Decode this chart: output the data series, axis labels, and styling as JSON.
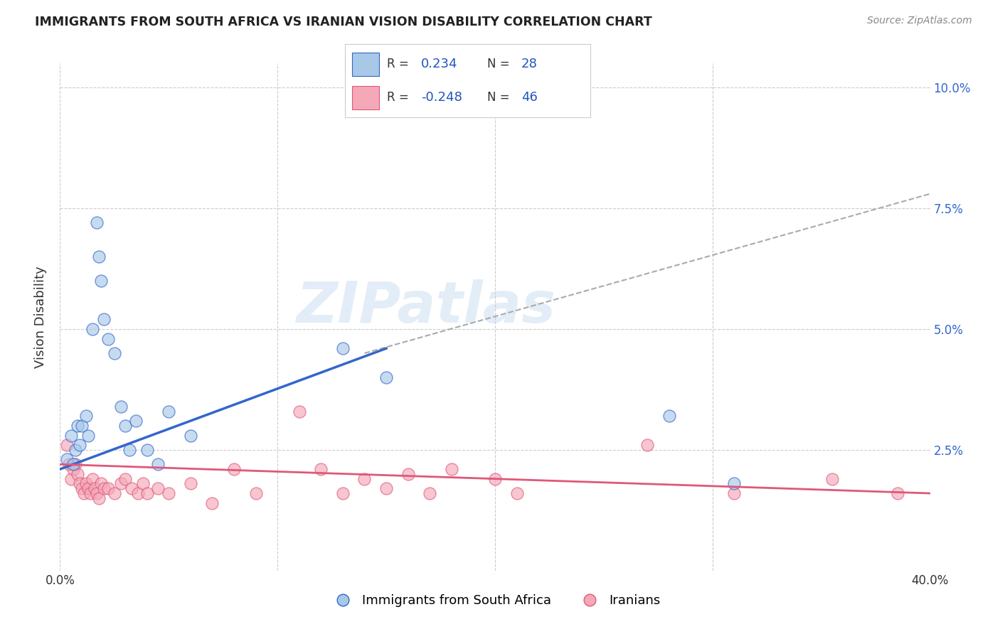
{
  "title": "IMMIGRANTS FROM SOUTH AFRICA VS IRANIAN VISION DISABILITY CORRELATION CHART",
  "source": "Source: ZipAtlas.com",
  "ylabel": "Vision Disability",
  "xmin": 0.0,
  "xmax": 0.4,
  "ymin": 0.0,
  "ymax": 0.105,
  "yticks": [
    0.025,
    0.05,
    0.075,
    0.1
  ],
  "ytick_labels": [
    "2.5%",
    "5.0%",
    "7.5%",
    "10.0%"
  ],
  "xticks": [
    0.0,
    0.1,
    0.2,
    0.3,
    0.4
  ],
  "xtick_labels": [
    "0.0%",
    "",
    "",
    "",
    "40.0%"
  ],
  "blue_color": "#a8c8e8",
  "pink_color": "#f4a8b8",
  "blue_line_color": "#3366cc",
  "pink_line_color": "#e05878",
  "blue_scatter": [
    [
      0.003,
      0.023
    ],
    [
      0.005,
      0.028
    ],
    [
      0.006,
      0.022
    ],
    [
      0.007,
      0.025
    ],
    [
      0.008,
      0.03
    ],
    [
      0.009,
      0.026
    ],
    [
      0.01,
      0.03
    ],
    [
      0.012,
      0.032
    ],
    [
      0.013,
      0.028
    ],
    [
      0.015,
      0.05
    ],
    [
      0.017,
      0.072
    ],
    [
      0.018,
      0.065
    ],
    [
      0.019,
      0.06
    ],
    [
      0.02,
      0.052
    ],
    [
      0.022,
      0.048
    ],
    [
      0.025,
      0.045
    ],
    [
      0.028,
      0.034
    ],
    [
      0.03,
      0.03
    ],
    [
      0.032,
      0.025
    ],
    [
      0.035,
      0.031
    ],
    [
      0.04,
      0.025
    ],
    [
      0.045,
      0.022
    ],
    [
      0.05,
      0.033
    ],
    [
      0.06,
      0.028
    ],
    [
      0.13,
      0.046
    ],
    [
      0.15,
      0.04
    ],
    [
      0.28,
      0.032
    ],
    [
      0.31,
      0.018
    ]
  ],
  "pink_scatter": [
    [
      0.003,
      0.026
    ],
    [
      0.004,
      0.022
    ],
    [
      0.005,
      0.019
    ],
    [
      0.006,
      0.021
    ],
    [
      0.007,
      0.022
    ],
    [
      0.008,
      0.02
    ],
    [
      0.009,
      0.018
    ],
    [
      0.01,
      0.017
    ],
    [
      0.011,
      0.016
    ],
    [
      0.012,
      0.018
    ],
    [
      0.013,
      0.017
    ],
    [
      0.014,
      0.016
    ],
    [
      0.015,
      0.019
    ],
    [
      0.016,
      0.017
    ],
    [
      0.017,
      0.016
    ],
    [
      0.018,
      0.015
    ],
    [
      0.019,
      0.018
    ],
    [
      0.02,
      0.017
    ],
    [
      0.022,
      0.017
    ],
    [
      0.025,
      0.016
    ],
    [
      0.028,
      0.018
    ],
    [
      0.03,
      0.019
    ],
    [
      0.033,
      0.017
    ],
    [
      0.036,
      0.016
    ],
    [
      0.038,
      0.018
    ],
    [
      0.04,
      0.016
    ],
    [
      0.045,
      0.017
    ],
    [
      0.05,
      0.016
    ],
    [
      0.06,
      0.018
    ],
    [
      0.07,
      0.014
    ],
    [
      0.08,
      0.021
    ],
    [
      0.09,
      0.016
    ],
    [
      0.11,
      0.033
    ],
    [
      0.12,
      0.021
    ],
    [
      0.13,
      0.016
    ],
    [
      0.14,
      0.019
    ],
    [
      0.15,
      0.017
    ],
    [
      0.16,
      0.02
    ],
    [
      0.17,
      0.016
    ],
    [
      0.18,
      0.021
    ],
    [
      0.2,
      0.019
    ],
    [
      0.21,
      0.016
    ],
    [
      0.27,
      0.026
    ],
    [
      0.31,
      0.016
    ],
    [
      0.355,
      0.019
    ],
    [
      0.385,
      0.016
    ]
  ],
  "blue_line_xrange": [
    0.0,
    0.15
  ],
  "blue_line_start_y": 0.021,
  "blue_line_end_y": 0.046,
  "dashed_line_xrange": [
    0.14,
    0.4
  ],
  "dashed_line_start_y": 0.045,
  "dashed_line_end_y": 0.078,
  "pink_line_start_y": 0.022,
  "pink_line_end_y": 0.016,
  "watermark_text": "ZIPatlas",
  "watermark_color": "#c8ddf0",
  "grid_color": "#cccccc",
  "background_color": "#ffffff",
  "legend_r1_text": "R =  0.234",
  "legend_n1_text": "N = 28",
  "legend_r2_text": "R = -0.248",
  "legend_n2_text": "N = 46",
  "legend_color": "#2255bb"
}
